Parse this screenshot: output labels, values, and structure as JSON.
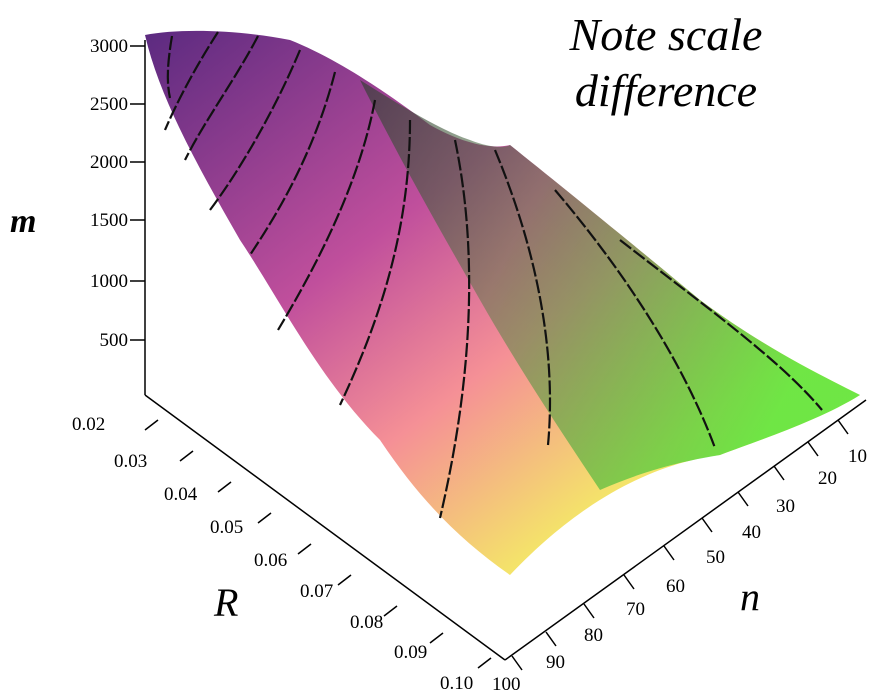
{
  "chart_data": {
    "type": "surface3d",
    "title": "",
    "annotation": [
      "Note scale",
      "difference"
    ],
    "axes": {
      "m": {
        "label": "m",
        "ticks": [
          "500",
          "1000",
          "1500",
          "2000",
          "2500",
          "3000"
        ],
        "range": [
          0,
          3100
        ]
      },
      "R": {
        "label": "R",
        "ticks": [
          "0.02",
          "0.03",
          "0.04",
          "0.05",
          "0.06",
          "0.07",
          "0.08",
          "0.09",
          "0.10"
        ],
        "range": [
          0.02,
          0.1
        ]
      },
      "n": {
        "label": "n",
        "ticks": [
          "10",
          "20",
          "30",
          "40",
          "50",
          "60",
          "70",
          "80",
          "90",
          "100"
        ],
        "range": [
          1,
          100
        ]
      }
    },
    "colormap": [
      "#6a2a8a",
      "#c84fa0",
      "#f08a90",
      "#f5d060",
      "#e8f55a",
      "#5ae04a"
    ],
    "contour_count": 11
  }
}
